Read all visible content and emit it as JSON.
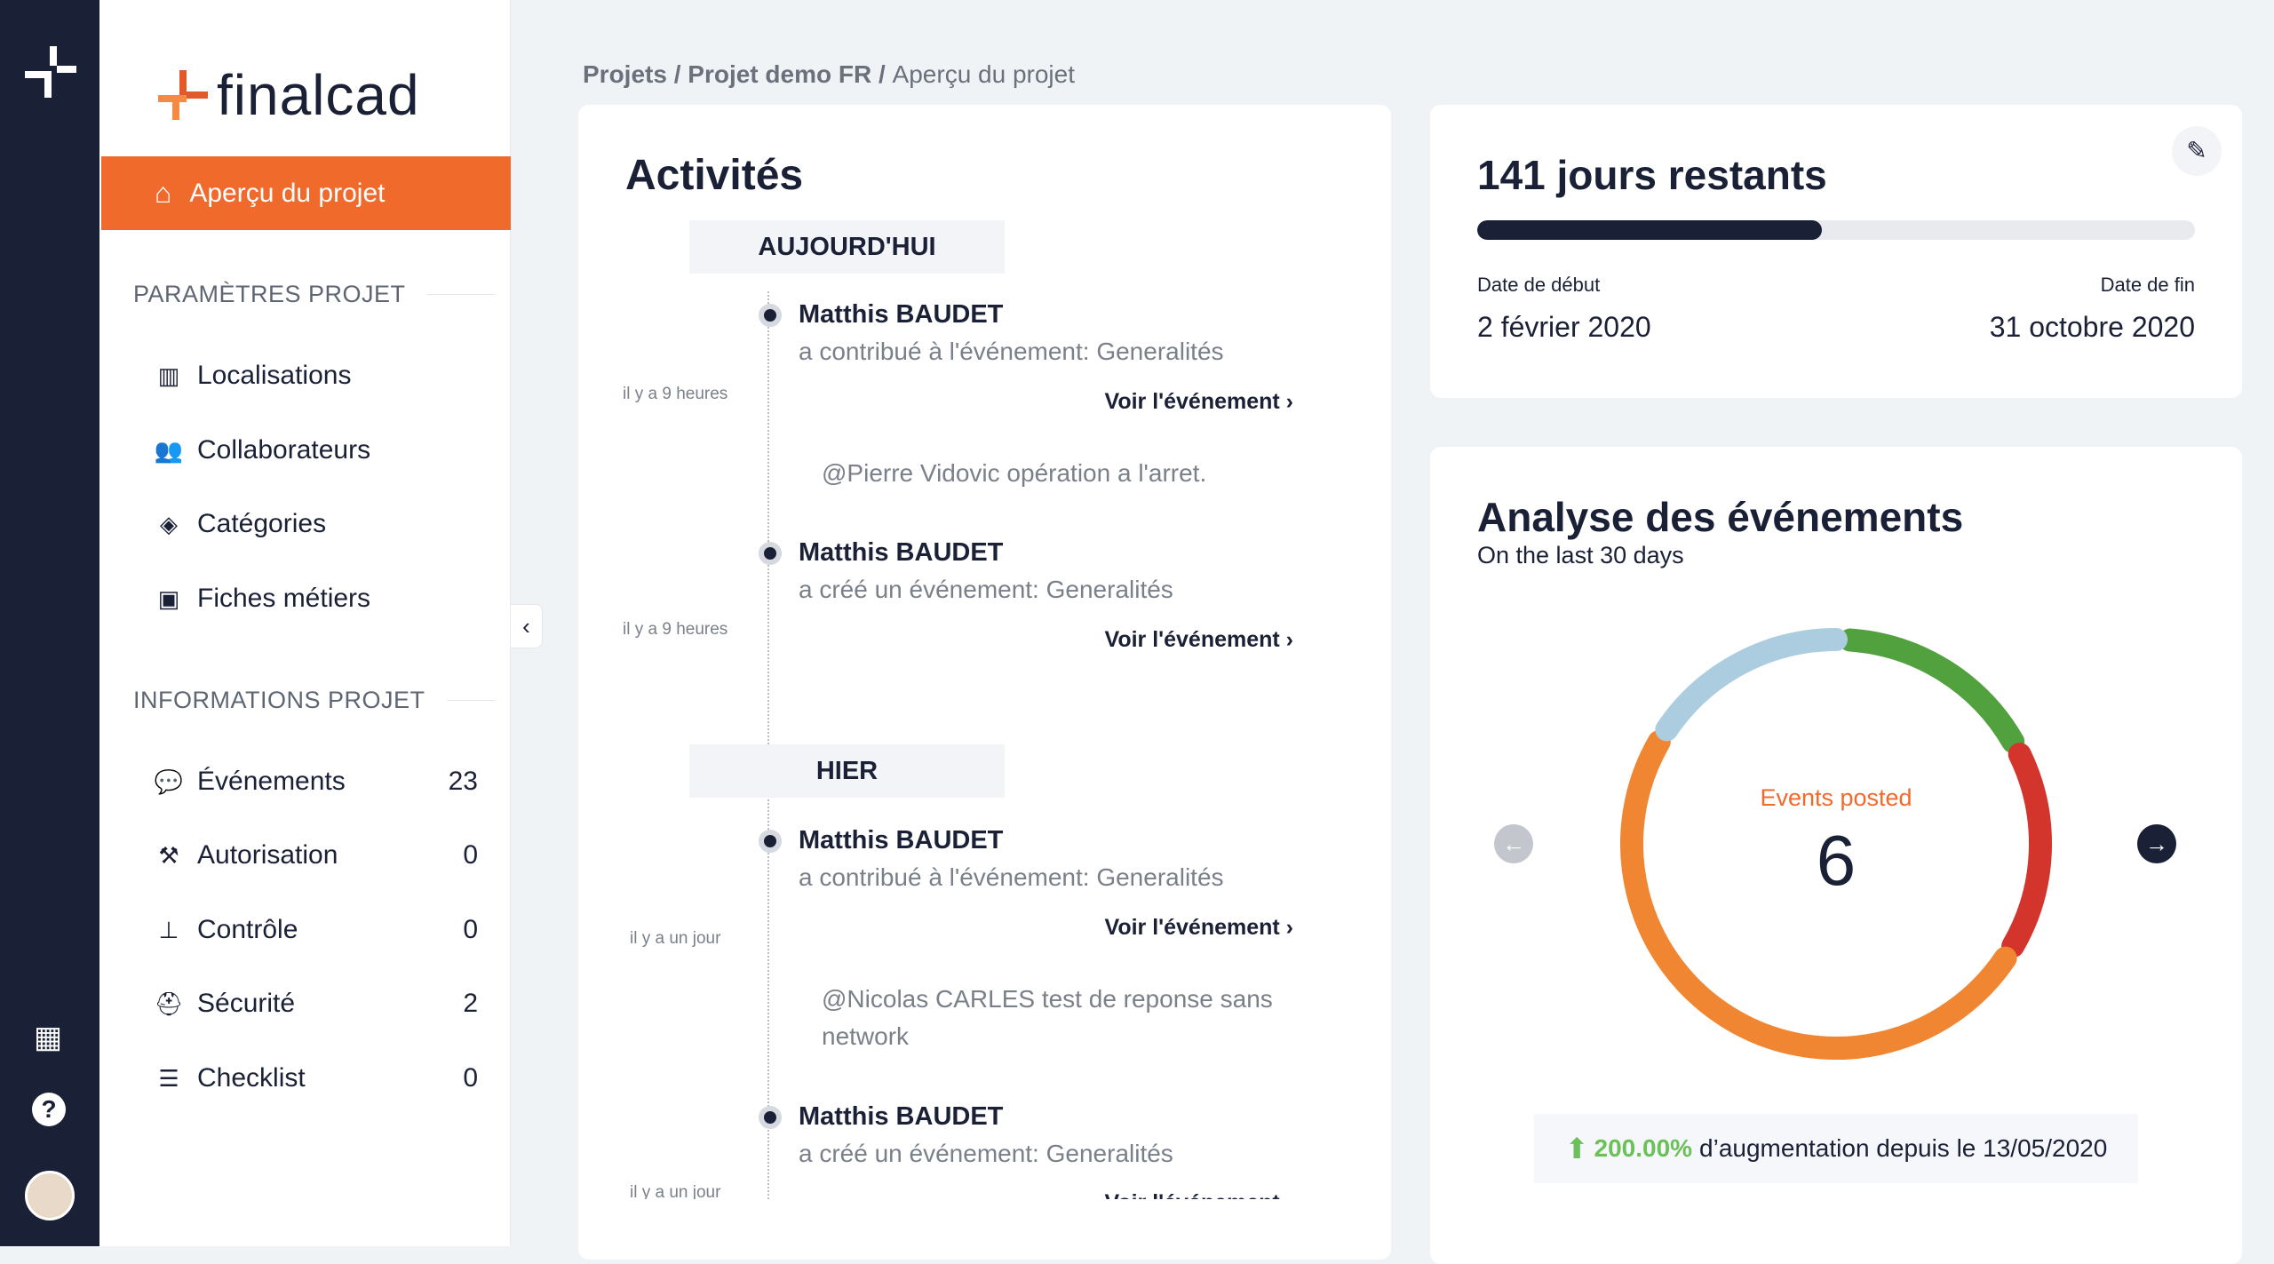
{
  "breadcrumb": [
    "Projets",
    "Projet demo FR",
    "Aperçu du projet"
  ],
  "brand": {
    "name": "finalcad",
    "accent": "#f06a2c"
  },
  "sidebar": {
    "active": "Aperçu du projet",
    "section1": "PARAMÈTRES PROJET",
    "params": [
      {
        "label": "Localisations",
        "icon": "map-icon"
      },
      {
        "label": "Collaborateurs",
        "icon": "users-icon"
      },
      {
        "label": "Catégories",
        "icon": "layers-icon"
      },
      {
        "label": "Fiches métiers",
        "icon": "form-icon"
      }
    ],
    "section2": "INFORMATIONS PROJET",
    "infos": [
      {
        "label": "Événements",
        "count": "23",
        "icon": "chat-icon"
      },
      {
        "label": "Autorisation",
        "count": "0",
        "icon": "hammer-icon"
      },
      {
        "label": "Contrôle",
        "count": "0",
        "icon": "stamp-icon"
      },
      {
        "label": "Sécurité",
        "count": "2",
        "icon": "worker-icon"
      },
      {
        "label": "Checklist",
        "count": "0",
        "icon": "list-icon"
      }
    ]
  },
  "activities": {
    "title": "Activités",
    "today": "AUJOURD'HUI",
    "yesterday": "HIER",
    "link": "Voir l'événement",
    "entries": [
      {
        "name": "Matthis BAUDET",
        "desc": "a contribué à l'événement: Generalités",
        "time": "il y a 9 heures",
        "comment": "@Pierre Vidovic opération a l'arret."
      },
      {
        "name": "Matthis BAUDET",
        "desc": "a créé un événement: Generalités",
        "time": "il y a 9 heures"
      },
      {
        "name": "Matthis BAUDET",
        "desc": "a contribué à l'événement: Generalités",
        "time": "il y a un jour",
        "comment": "@Nicolas CARLES test de reponse sans network"
      },
      {
        "name": "Matthis BAUDET",
        "desc": "a créé un événement: Generalités",
        "time": "il y a un jour"
      }
    ]
  },
  "schedule": {
    "title": "141 jours restants",
    "progress": 0.48,
    "start_label": "Date de début",
    "start": "2 février 2020",
    "end_label": "Date de fin",
    "end": "31 octobre 2020"
  },
  "analysis": {
    "title": "Analyse des événements",
    "subtitle": "On the last 30 days",
    "center_label": "Events posted",
    "center_value": "6",
    "increase": "200.00%",
    "increase_text": "d’augmentation depuis le 13/05/2020"
  },
  "chart_data": {
    "type": "pie",
    "variant": "donut",
    "total": 6,
    "values": [
      1,
      1,
      3,
      1
    ],
    "colors": [
      "#52a13f",
      "#d3342c",
      "#f18632",
      "#acccdf"
    ]
  }
}
